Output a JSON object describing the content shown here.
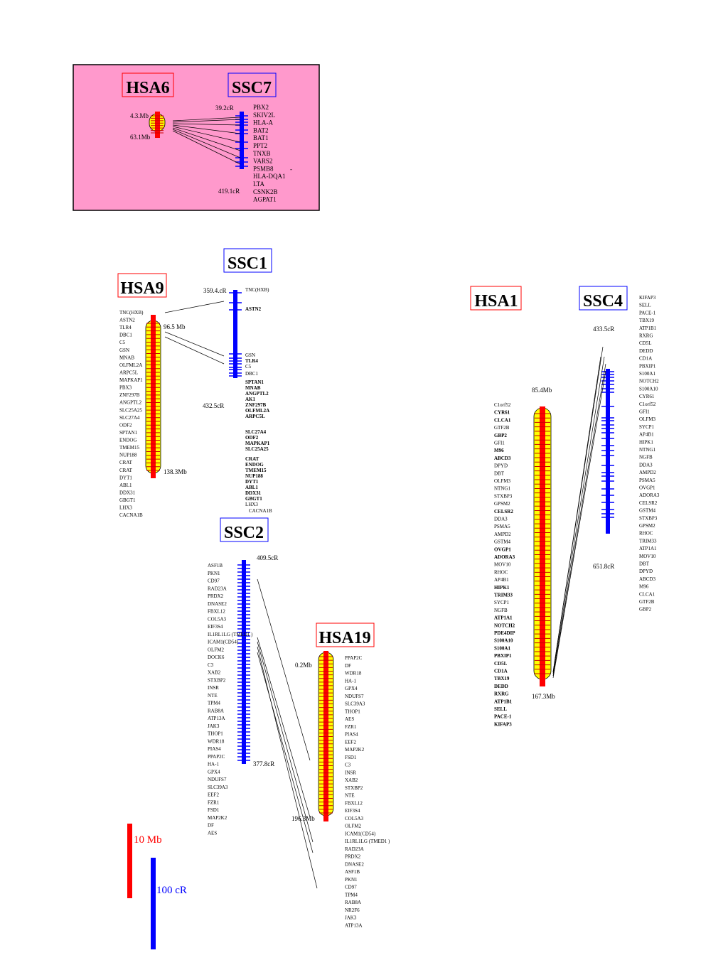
{
  "colors": {
    "human": "#ff0000",
    "pig": "#0000ff",
    "centromere_fill": "#ffff00",
    "inset_bg": "#ff99cc",
    "text": "#000000"
  },
  "inset": {
    "human_label": "HSA6",
    "pig_label": "SSC7",
    "human_top": "4.3.Mb",
    "human_bottom": "63.1Mb",
    "pig_top": "39.2cR",
    "pig_bottom": "419.1cR",
    "pig_genes": [
      "PBX2",
      "SKIV2L",
      "HLA-A",
      "BAT2",
      "BAT1",
      "PPT2",
      "TNXB",
      "VARS2",
      "PSMB8",
      "HLA-DQA1",
      "LTA",
      "CSNK2B",
      "AGPAT1"
    ],
    "stray_mark": "-"
  },
  "hsa9": {
    "label": "HSA9",
    "top": "96.5  Mb",
    "bottom": "138.3Mb",
    "genes": [
      "TNC(HXB)",
      "ASTN2",
      "TLR4",
      "DBC1",
      "C5",
      "GSN",
      "MNAB",
      "OLFML2A",
      "ARPC5L",
      "MAPKAP1",
      "PBX3",
      "ZNF297B",
      "ANGPTL2",
      "SLC25A25",
      "SLC27A4",
      "ODF2",
      "SPTAN1",
      "ENDOG",
      "TMEM15",
      "NUP188",
      "CRAT",
      "CRAT",
      "DYT1",
      "ABL1",
      "DDX31",
      "GBGT1",
      "LHX3",
      "CACNA1B"
    ]
  },
  "ssc1": {
    "label": "SSC1",
    "top": "359.4.cR",
    "bottom": "432.5cR",
    "genes": [
      "TNC(HXB)",
      "ASTN2",
      "GSN",
      "TLR4",
      "C5",
      "DBC1",
      "SPTAN1",
      "MNAB",
      "ANGPTL2",
      "AK1",
      "ZNF297B",
      "OLFML2A",
      "ARPC5L",
      "SLC27A4",
      "ODF2",
      "MAPKAP1",
      "SLC25A25",
      "CRAT",
      "ENDOG",
      "TMEM15",
      "NUP188",
      "DYT1",
      "ABL1",
      "DDX31",
      "GBGT1",
      "LHX3",
      "CACNA1B"
    ]
  },
  "ssc2": {
    "label": "SSC2",
    "top": "409.5cR",
    "bottom": "377.8cR",
    "genes": [
      "ASF1B",
      "PKN1",
      "CD97",
      "RAD23A",
      "PRDX2",
      "DNASE2",
      "FBXL12",
      "COL5A3",
      "EIF3S4",
      "IL1RL1LG (TMED1 )",
      "ICAM1(CD54)",
      "OLFM2",
      "DOCK6",
      "C3",
      "XAB2",
      "STXBP2",
      "INSR",
      "NTE",
      "TPM4",
      "RAB8A",
      "ATP13A",
      "JAK3",
      "THOP1",
      "WDR18",
      "PIAS4",
      "PPAP2C",
      "HA-1",
      "GPX4",
      "NDUFS7",
      "SLC39A3",
      "EEF2",
      "FZR1",
      "FSD1",
      "MAP2K2",
      "DF",
      "AES"
    ]
  },
  "hsa19": {
    "label": "HSA19",
    "top": "0.2Mb",
    "bottom": "196.3Mb",
    "genes": [
      "PPAP2C",
      "DF",
      "WDR18",
      "HA-1",
      "GPX4",
      "NDUFS7",
      "SLC39A3",
      "THOP1",
      "AES",
      "FZR1",
      "PIAS4",
      "EEF2",
      "MAP2K2",
      "FSD1",
      "C3",
      "INSR",
      "XAB2",
      "STXBP2",
      "NTE",
      "FBXL12",
      "EIF3S4",
      "COL5A3",
      "OLFM2",
      "ICAM1(CD54)",
      "IL1RL1LG (TMED1 )",
      "RAD23A",
      "PRDX2",
      "DNASE2",
      "ASF1B",
      "PKN1",
      "CD97",
      "TPM4",
      "RAB8A",
      "NR2F6",
      "JAK3",
      "ATP13A"
    ]
  },
  "hsa1": {
    "label": "HSA1",
    "top": "85.4Mb",
    "bottom": "167.3Mb",
    "genes": [
      "C1orf52",
      "CYR61",
      "CLCA1",
      "GTF2B",
      "GBP2",
      "GFI1",
      "M96",
      "ABCD3",
      "DPYD",
      "DBT",
      "OLFM3",
      "NTNG1",
      "STXBP3",
      "GPSM2",
      "CELSR2",
      "DDA3",
      "PSMA5",
      "AMPD2",
      "GSTM4",
      "OVGP1",
      "ADORA3",
      "MOV10",
      "RHOC",
      "AP4B1",
      "HIPK1",
      "TRIM33",
      "SYCP1",
      "NGFB",
      "ATP1A1",
      "NOTCH2",
      "PDE4DIP",
      "S100A10",
      "S100A1",
      "PBXIP1",
      "CD5L",
      "CD1A",
      "TBX19",
      "DEDD",
      "RXRG",
      "ATP1B1",
      "SELL",
      "PACE-1",
      "KIFAP3"
    ]
  },
  "ssc4": {
    "label": "SSC4",
    "top": "433.5cR",
    "bottom": "651.8cR",
    "genes": [
      "KIFAP3",
      "SELL",
      "PACE-1",
      "TBX19",
      "ATP1B1",
      "RXRG",
      "CD5L",
      "DEDD",
      "CD1A",
      "PBXIP1",
      "S100A1",
      "NOTCH2",
      "S100A10",
      "CYR61",
      "C1orf52",
      "GFI1",
      "OLFM3",
      "SYCP1",
      "AP4B1",
      "HIPK1",
      "NTNG1",
      "NGFB",
      "DDA3",
      "AMPD2",
      "PSMA5",
      "OVGP1",
      "ADORA3",
      "CELSR2",
      "GSTM4",
      "STXBP3",
      "GPSM2",
      "RHOC",
      "TRIM33",
      "ATP1A1",
      "MOV10",
      "DBT",
      "DPYD",
      "ABCD3",
      "M96",
      "CLCA1",
      "GTF2B",
      "GBP2"
    ]
  },
  "scale": {
    "mb": "10 Mb",
    "cr": "100 cR"
  }
}
